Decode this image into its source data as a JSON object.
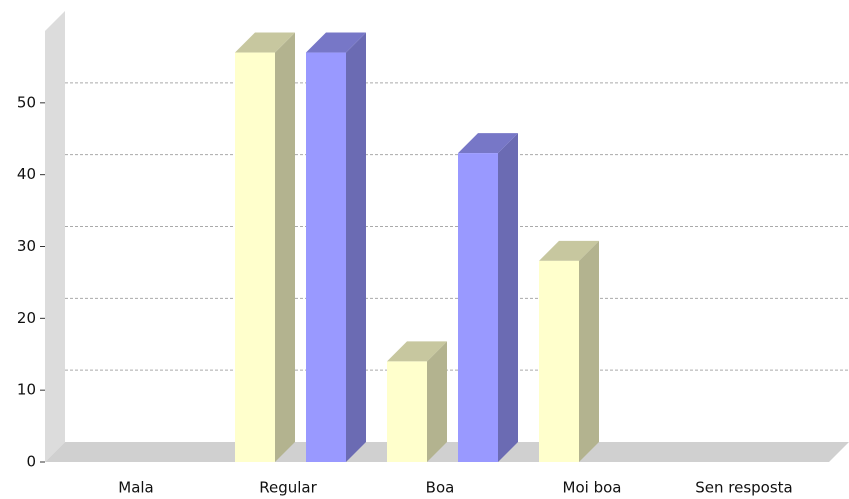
{
  "chart_data": {
    "type": "bar3d",
    "categories": [
      "Mala",
      "Regular",
      "Boa",
      "Moi boa",
      "Sen resposta"
    ],
    "series": [
      {
        "color": "#ffffcc",
        "values": [
          0,
          57,
          14,
          28,
          0
        ]
      },
      {
        "color": "#9999ff",
        "values": [
          0,
          57,
          43,
          0,
          0
        ]
      }
    ],
    "ylim": [
      0,
      60
    ],
    "yticks": [
      0,
      10,
      20,
      30,
      40,
      50
    ],
    "grid": true
  }
}
